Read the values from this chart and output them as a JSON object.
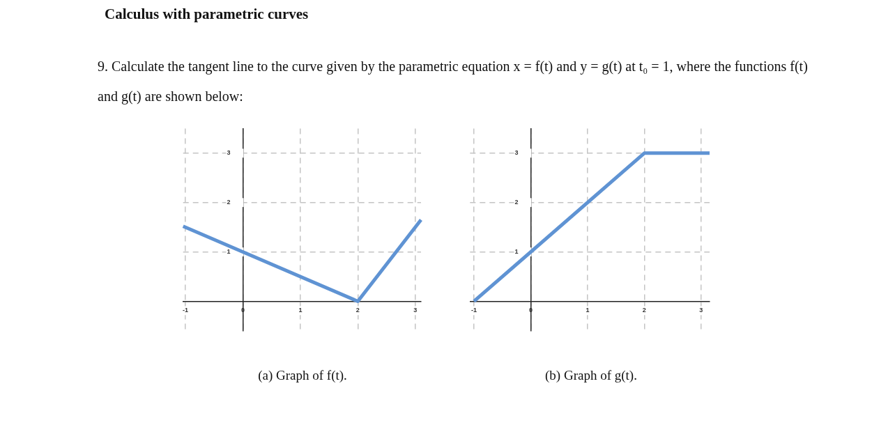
{
  "chart_data": [
    {
      "type": "line",
      "title": "(a) Graph of f(t).",
      "annotations": [
        "Calculus with parametric curves",
        "9. Calculate the tangent line to the curve given by the parametric equation x = f(t) and y = g(t) at t₀ = 1, where the functions f(t) and g(t) are shown below:"
      ],
      "x": [
        -1.04,
        2,
        3.1
      ],
      "values": [
        1.52,
        0,
        1.65
      ],
      "color": "#5f93d3",
      "marker": "none",
      "xlim": [
        -1.04,
        3.1
      ],
      "ylim": [
        -0.6,
        3.5
      ],
      "xticks": [
        -1,
        0,
        1,
        2,
        3
      ],
      "yticks": [
        1,
        2,
        3
      ],
      "grid": true,
      "legend": false
    },
    {
      "type": "line",
      "title": "(b) Graph of g(t).",
      "x": [
        -1,
        2,
        3.15
      ],
      "values": [
        0,
        3,
        3
      ],
      "color": "#5f93d3",
      "marker": "none",
      "xlim": [
        -1.07,
        3.15
      ],
      "ylim": [
        -0.6,
        3.5
      ],
      "xticks": [
        -1,
        0,
        1,
        2,
        3
      ],
      "yticks": [
        1,
        2,
        3
      ],
      "grid": true,
      "legend": false
    }
  ]
}
